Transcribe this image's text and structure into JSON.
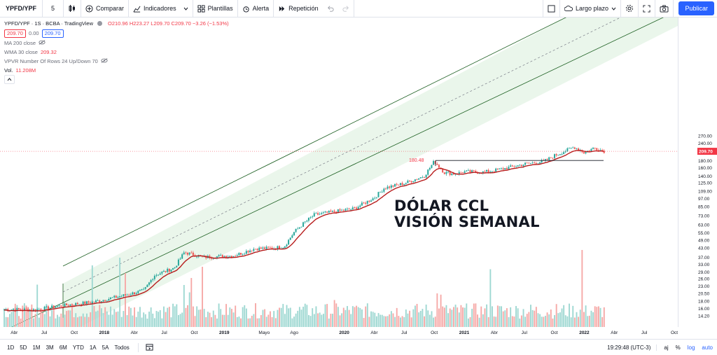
{
  "toolbar": {
    "symbol": "YPFD/YPF",
    "interval": "5",
    "compare_label": "Comparar",
    "indicators_label": "Indicadores",
    "templates_label": "Plantillas",
    "alert_label": "Alerta",
    "replay_label": "Repetición",
    "layout_label": "Largo plazo",
    "publish_label": "Publicar"
  },
  "legend": {
    "title": "YPFD/YPF · 1S · BCBA · TradingView",
    "ohlc": "O210.96 H223.27 L209.70 C209.70 −3.26 (−1.53%)",
    "bid": "209.70",
    "spread": "0.00",
    "ask": "209.70",
    "ma200": "MA 200 close",
    "wma30": "WMA 30 close",
    "wma30_value": "209.32",
    "vpvr": "VPVR Number Of Rows 24 Up/Down 70",
    "vol_label": "Vol.",
    "vol_value": "11.208M"
  },
  "annotations": {
    "resistance_label": "180.48",
    "title_line1": "DÓLAR CCL",
    "title_line2": "VISIÓN SEMANAL"
  },
  "price_scale": {
    "ticks": [
      "270.00",
      "240.00",
      "210.00",
      "180.00",
      "160.00",
      "140.00",
      "125.00",
      "109.00",
      "97.00",
      "85.00",
      "73.00",
      "63.00",
      "55.00",
      "49.00",
      "43.00",
      "37.00",
      "33.00",
      "29.00",
      "26.00",
      "23.00",
      "20.50",
      "18.00",
      "16.00",
      "14.20"
    ],
    "current_price": "209.70"
  },
  "time_scale": {
    "ticks": [
      "Abr",
      "Jul",
      "Oct",
      "2018",
      "Abr",
      "Jul",
      "Oct",
      "2019",
      "Mayo",
      "Ago",
      "2020",
      "Abr",
      "Jul",
      "Oct",
      "2021",
      "Abr",
      "Jul",
      "Oct",
      "2022",
      "Abr",
      "Jul",
      "Oct"
    ]
  },
  "bottom": {
    "ranges": [
      "1D",
      "5D",
      "1M",
      "3M",
      "6M",
      "YTD",
      "1A",
      "5A",
      "Todos"
    ],
    "clock": "19:29:48 (UTC-3)",
    "adj": "aj",
    "percent": "%",
    "log": "log",
    "auto": "auto"
  },
  "colors": {
    "up": "#26a69a",
    "down": "#ef5350",
    "wma": "#b71c1c",
    "channel_fill": "#e8f5e9",
    "accent": "#2962ff"
  },
  "chart_data": {
    "type": "candlestick",
    "scale": "log",
    "x_range": [
      "2017-03",
      "2022-10"
    ],
    "ylim": [
      13.5,
      280
    ],
    "wma30_last": 209.32,
    "resistance": 180.48,
    "price_path": [
      [
        "2017-03",
        15.8
      ],
      [
        "2017-06",
        15.6
      ],
      [
        "2017-09",
        16.8
      ],
      [
        "2017-12",
        17.8
      ],
      [
        "2018-03",
        19.8
      ],
      [
        "2018-05",
        21.5
      ],
      [
        "2018-06",
        27.5
      ],
      [
        "2018-08",
        31
      ],
      [
        "2018-09",
        40
      ],
      [
        "2018-11",
        37
      ],
      [
        "2019-02",
        38
      ],
      [
        "2019-04",
        42.5
      ],
      [
        "2019-06",
        43
      ],
      [
        "2019-07",
        44
      ],
      [
        "2019-08",
        56
      ],
      [
        "2019-09",
        65
      ],
      [
        "2019-10",
        74
      ],
      [
        "2019-12",
        78
      ],
      [
        "2020-02",
        82
      ],
      [
        "2020-04",
        98
      ],
      [
        "2020-05",
        115
      ],
      [
        "2020-07",
        124
      ],
      [
        "2020-09",
        140
      ],
      [
        "2020-10",
        178
      ],
      [
        "2020-11",
        148
      ],
      [
        "2020-12",
        145
      ],
      [
        "2021-01",
        150
      ],
      [
        "2021-03",
        149
      ],
      [
        "2021-05",
        158
      ],
      [
        "2021-07",
        170
      ],
      [
        "2021-09",
        178
      ],
      [
        "2021-10",
        195
      ],
      [
        "2021-12",
        225
      ],
      [
        "2022-01",
        205
      ],
      [
        "2022-02",
        222
      ],
      [
        "2022-03",
        209.7
      ]
    ]
  }
}
